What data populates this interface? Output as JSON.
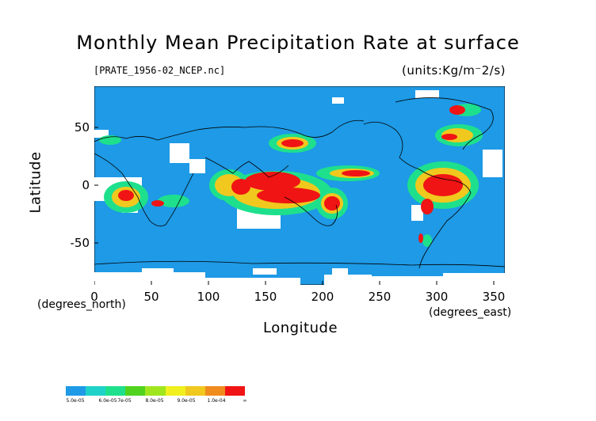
{
  "title": "Monthly Mean Precipitation Rate at surface",
  "file_label": "[PRATE_1956-02_NCEP.nc]",
  "units_label": "(units:Kg/m⁻2/s)",
  "axes": {
    "x_ticks": [
      "0",
      "50",
      "100",
      "150",
      "200",
      "250",
      "300",
      "350"
    ],
    "y_ticks": [
      "50",
      "0",
      "-50"
    ],
    "x_unit_left": "(degrees_north)",
    "x_unit_right": "(degrees_east)",
    "xlabel": "Longitude",
    "ylabel": "Latitude"
  },
  "map": {
    "lon_range": [
      0,
      360
    ],
    "lat_range": [
      -90,
      90
    ],
    "base_color": "#1e9ae6",
    "missing_color": "#ffffff",
    "heavy_color": "#f01414"
  },
  "colorbar": {
    "colors": [
      "#1e9ae6",
      "#1ed2c8",
      "#1ee08c",
      "#50d21e",
      "#a0e61e",
      "#f0f01e",
      "#f0c81e",
      "#f08c1e",
      "#f01414"
    ],
    "labels": [
      "5.0e-05",
      "6.0e-05",
      "7e-05",
      "8.0e-05",
      "9.0e-05",
      "1.0e-04",
      "∞"
    ]
  }
}
